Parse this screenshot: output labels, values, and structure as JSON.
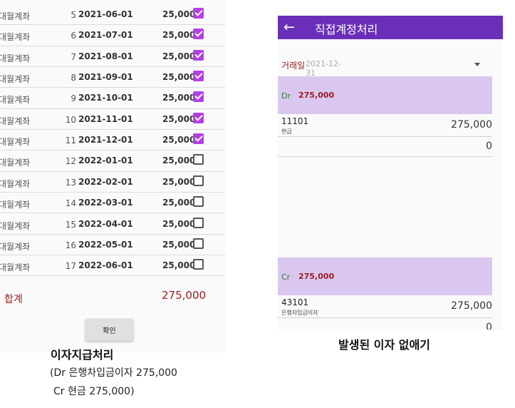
{
  "left": {
    "rows": [
      {
        "account": "대월계좌",
        "no": "5",
        "date": "2021-06-01",
        "amount": "25,000",
        "checked": true
      },
      {
        "account": "대월계좌",
        "no": "6",
        "date": "2021-07-01",
        "amount": "25,000",
        "checked": true
      },
      {
        "account": "대월계좌",
        "no": "7",
        "date": "2021-08-01",
        "amount": "25,000",
        "checked": true
      },
      {
        "account": "대월계좌",
        "no": "8",
        "date": "2021-09-01",
        "amount": "25,000",
        "checked": true
      },
      {
        "account": "대월계좌",
        "no": "9",
        "date": "2021-10-01",
        "amount": "25,000",
        "checked": true
      },
      {
        "account": "대월계좌",
        "no": "10",
        "date": "2021-11-01",
        "amount": "25,000",
        "checked": true
      },
      {
        "account": "대월계좌",
        "no": "11",
        "date": "2021-12-01",
        "amount": "25,000",
        "checked": true
      },
      {
        "account": "대월계좌",
        "no": "12",
        "date": "2022-01-01",
        "amount": "25,000",
        "checked": false
      },
      {
        "account": "대월계좌",
        "no": "13",
        "date": "2022-02-01",
        "amount": "25,000",
        "checked": false
      },
      {
        "account": "대월계좌",
        "no": "14",
        "date": "2022-03-01",
        "amount": "25,000",
        "checked": false
      },
      {
        "account": "대월계좌",
        "no": "15",
        "date": "2022-04-01",
        "amount": "25,000",
        "checked": false
      },
      {
        "account": "대월계좌",
        "no": "16",
        "date": "2022-05-01",
        "amount": "25,000",
        "checked": false
      },
      {
        "account": "대월계좌",
        "no": "17",
        "date": "2022-06-01",
        "amount": "25,000",
        "checked": false
      }
    ],
    "total_label": "합계",
    "total_value": "275,000",
    "confirm_label": "확인",
    "caption_title": "이자지급처리",
    "caption_dr": "(Dr 은행차입금이자 275,000",
    "caption_cr": "Cr 현금 275,000)"
  },
  "right": {
    "title": "직접계정처리",
    "back_icon": "arrow-left-icon",
    "date_label": "거래일",
    "date_value": "2021-12-31",
    "dr": {
      "tag": "Dr",
      "amount": "275,000",
      "entry_code": "11101",
      "entry_name": "현금",
      "entry_value": "275,000",
      "zero": "0"
    },
    "cr": {
      "tag": "Cr",
      "amount": "275,000",
      "entry_code": "43101",
      "entry_name": "은행차입금이자",
      "entry_value": "275,000",
      "zero": "0"
    },
    "caption": "발생된 이자 없애기"
  },
  "colors": {
    "appbar": "#6a2fb8",
    "band": "#dac7ef",
    "checkbox_on": "#b33fe6",
    "accent_red": "#9b1c1c"
  }
}
